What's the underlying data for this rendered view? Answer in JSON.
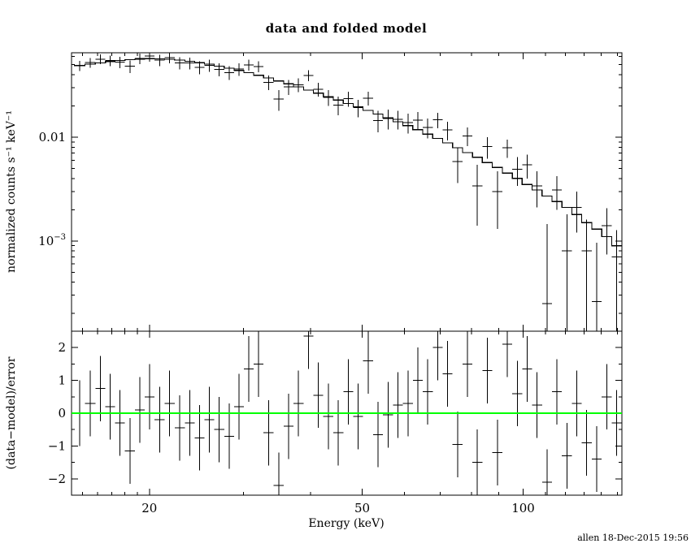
{
  "meta": {
    "footer": "allen 18-Dec-2015 19:56"
  },
  "chart_data": {
    "type": "scatter",
    "title": "data and folded model",
    "xlabel": "Energy (keV)",
    "x_scale": "log",
    "x_range": [
      14.3,
      153
    ],
    "x_ticks": [
      {
        "v": 20,
        "label": "20"
      },
      {
        "v": 50,
        "label": "50"
      },
      {
        "v": 100,
        "label": "100"
      }
    ],
    "x_ticks_minor": [
      15,
      16,
      17,
      18,
      19,
      30,
      40,
      60,
      70,
      80,
      90,
      110,
      120,
      130,
      140,
      150
    ],
    "top_panel": {
      "ylabel": "normalized counts s⁻¹ keV⁻¹",
      "y_scale": "log",
      "y_range": [
        0.000135,
        0.065
      ],
      "y_ticks": [
        {
          "v": 0.001,
          "label": "10^−3"
        },
        {
          "v": 0.01,
          "label": "0.01"
        }
      ]
    },
    "bottom_panel": {
      "ylabel": "(data−model)/error",
      "y_scale": "linear",
      "y_range": [
        -2.5,
        2.5
      ],
      "y_ticks": [
        {
          "v": -2,
          "label": "−2"
        },
        {
          "v": -1,
          "label": "−1"
        },
        {
          "v": 0,
          "label": "0"
        },
        {
          "v": 1,
          "label": "1"
        },
        {
          "v": 2,
          "label": "2"
        }
      ],
      "y_ticks_minor": [
        -1.5,
        -0.5,
        0.5,
        1.5
      ],
      "zero_line_color": "#00ff00"
    },
    "series": [
      {
        "name": "data",
        "style": "errorbar-cross",
        "color": "#000000"
      },
      {
        "name": "folded model",
        "style": "step-histogram",
        "color": "#000000"
      }
    ],
    "energy_kev": [
      14.8,
      15.5,
      16.2,
      16.9,
      17.6,
      18.4,
      19.2,
      20.0,
      20.9,
      21.8,
      22.8,
      23.8,
      24.8,
      25.9,
      27.0,
      28.2,
      29.4,
      30.7,
      32.0,
      33.4,
      34.9,
      36.4,
      38.0,
      39.7,
      41.4,
      43.2,
      45.1,
      47.1,
      49.1,
      51.3,
      53.5,
      55.9,
      58.3,
      60.9,
      63.5,
      66.3,
      69.2,
      72.2,
      75.4,
      78.7,
      82.1,
      85.7,
      89.5,
      93.4,
      97.5,
      101.7,
      106.2,
      110.8,
      115.7,
      120.7,
      126.0,
      131.5,
      137.3,
      143.3,
      149.6
    ],
    "model": [
      0.049,
      0.0505,
      0.052,
      0.0535,
      0.0548,
      0.0558,
      0.0565,
      0.057,
      0.0568,
      0.0562,
      0.0552,
      0.0538,
      0.0522,
      0.0504,
      0.0484,
      0.0462,
      0.044,
      0.0417,
      0.0394,
      0.0371,
      0.0348,
      0.0326,
      0.0305,
      0.0284,
      0.0265,
      0.0246,
      0.0228,
      0.0211,
      0.0196,
      0.0181,
      0.0167,
      0.0153,
      0.0141,
      0.0129,
      0.0118,
      0.0107,
      0.0097,
      0.0088,
      0.0079,
      0.0071,
      0.0064,
      0.0057,
      0.0051,
      0.0045,
      0.004,
      0.0035,
      0.0031,
      0.0027,
      0.0024,
      0.0021,
      0.0018,
      0.0015,
      0.0013,
      0.0011,
      0.0009
    ],
    "data_values": [
      0.049,
      0.0522,
      0.0565,
      0.0548,
      0.0528,
      0.0481,
      0.0572,
      0.0605,
      0.0554,
      0.0583,
      0.052,
      0.0517,
      0.0471,
      0.0491,
      0.0451,
      0.0418,
      0.0452,
      0.0497,
      0.048,
      0.0338,
      0.0232,
      0.0306,
      0.032,
      0.0394,
      0.029,
      0.0242,
      0.0204,
      0.0236,
      0.0192,
      0.0238,
      0.0145,
      0.0151,
      0.0149,
      0.0138,
      0.0146,
      0.0124,
      0.0147,
      0.0117,
      0.0058,
      0.0103,
      0.0034,
      0.0081,
      0.003,
      0.0079,
      0.0049,
      0.0054,
      0.0034,
      0.00025,
      0.0031,
      0.0008,
      0.0021,
      0.0008,
      0.00026,
      0.0014,
      0.0007
    ],
    "errors": [
      0.0055,
      0.0058,
      0.006,
      0.0063,
      0.0065,
      0.0067,
      0.0068,
      0.007,
      0.007,
      0.007,
      0.007,
      0.0069,
      0.0068,
      0.0067,
      0.0065,
      0.0063,
      0.0062,
      0.006,
      0.0058,
      0.0055,
      0.0053,
      0.0051,
      0.0049,
      0.0047,
      0.0045,
      0.0043,
      0.0041,
      0.0039,
      0.0037,
      0.0036,
      0.0034,
      0.0033,
      0.0031,
      0.003,
      0.0028,
      0.0027,
      0.0025,
      0.0024,
      0.0022,
      0.0021,
      0.002,
      0.0019,
      0.0017,
      0.0016,
      0.0015,
      0.0014,
      0.0013,
      0.0012,
      0.0011,
      0.001,
      0.0009,
      0.0008,
      0.0007,
      0.00066,
      0.00057
    ],
    "residuals": [
      0.0,
      0.3,
      0.75,
      0.2,
      -0.3,
      -1.15,
      0.1,
      0.5,
      -0.2,
      0.3,
      -0.45,
      -0.3,
      -0.75,
      -0.2,
      -0.5,
      -0.7,
      0.2,
      1.35,
      1.5,
      -0.6,
      -2.2,
      -0.4,
      0.3,
      2.35,
      0.55,
      -0.1,
      -0.6,
      0.65,
      -0.1,
      1.6,
      -0.65,
      -0.05,
      0.25,
      0.3,
      1.0,
      0.65,
      2.0,
      1.2,
      -0.95,
      1.5,
      -1.5,
      1.3,
      -1.2,
      2.1,
      0.6,
      1.35,
      0.25,
      -2.1,
      0.65,
      -1.3,
      0.3,
      -0.9,
      -1.4,
      0.5,
      -0.3
    ]
  }
}
